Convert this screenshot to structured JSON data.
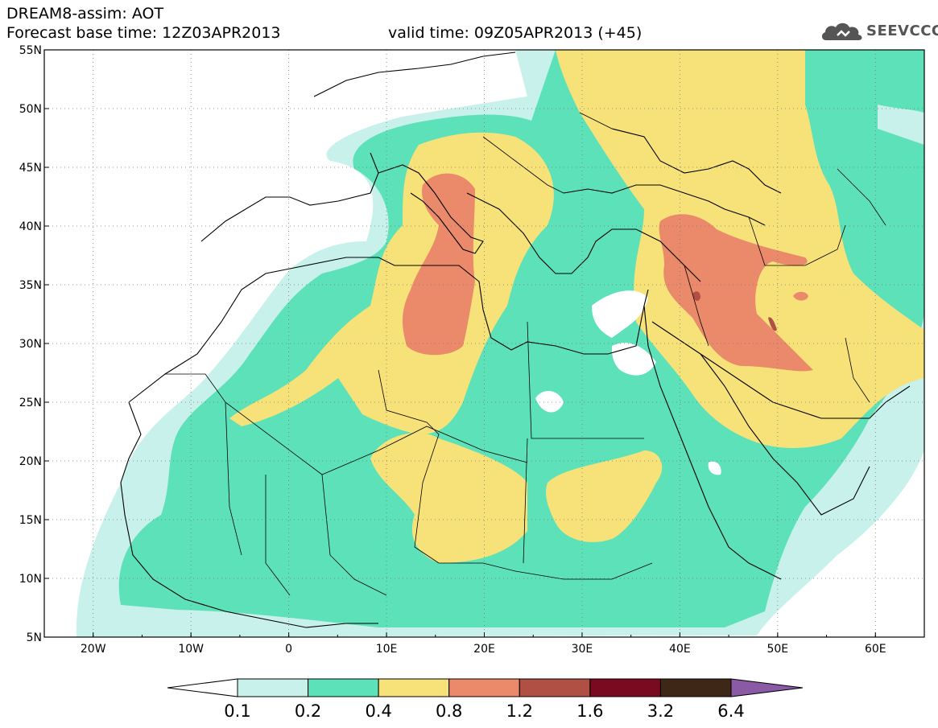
{
  "header": {
    "line1": "DREAM8-assim: AOT",
    "line2": "Forecast base time: 12Z03APR2013",
    "line3": "valid time: 09Z05APR2013 (+45)"
  },
  "logo": {
    "text": "SEEVCCC",
    "icon": "cloud-icon"
  },
  "map": {
    "lat_labels": [
      "55N",
      "50N",
      "45N",
      "40N",
      "35N",
      "30N",
      "25N",
      "20N",
      "15N",
      "10N",
      "5N"
    ],
    "lon_labels": [
      "20W",
      "10W",
      "0",
      "10E",
      "20E",
      "30E",
      "40E",
      "50E",
      "60E"
    ],
    "lat_range": [
      5,
      55
    ],
    "lon_range": [
      -25,
      65
    ],
    "lat_step": 5,
    "lon_step": 10,
    "grid": "dotted"
  },
  "colorbar": {
    "labels": [
      "0.1",
      "0.2",
      "0.4",
      "0.8",
      "1.2",
      "1.6",
      "3.2",
      "6.4"
    ],
    "colors": [
      "#ffffff",
      "#c7f1ea",
      "#5ce1b9",
      "#f7e27a",
      "#ea8a6a",
      "#b05045",
      "#7a0a20",
      "#3e2716",
      "#8a5aa5"
    ]
  }
}
